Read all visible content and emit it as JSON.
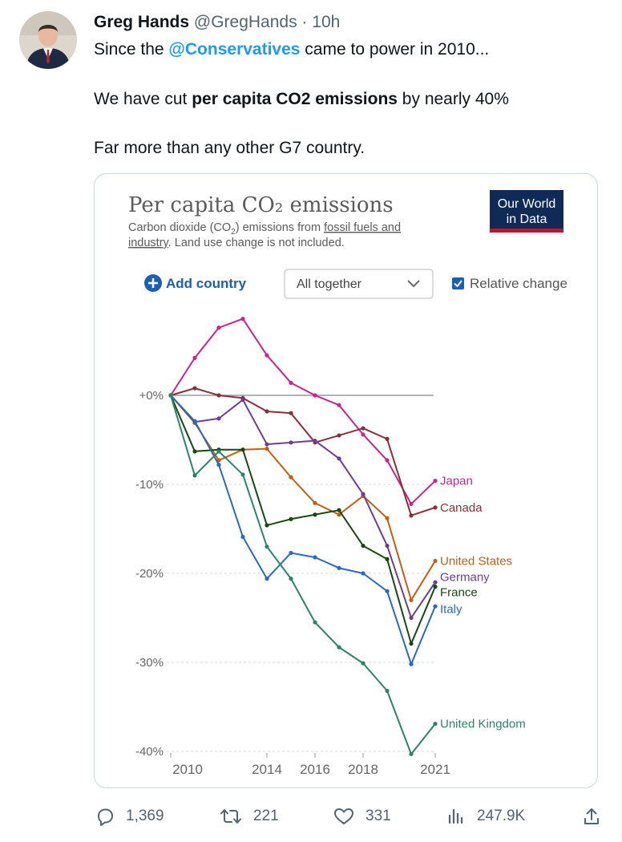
{
  "tweet": {
    "author_name": "Greg Hands",
    "author_handle": "@GregHands",
    "separator": " · ",
    "time": "10h",
    "line1_before": "Since the ",
    "line1_mention": "@Conservatives",
    "line1_after": " came to power in 2010...",
    "line2_before": "We have cut ",
    "line2_bold": "per capita CO2 emissions",
    "line2_after": " by nearly 40%",
    "line3": "Far more than any other G7 country."
  },
  "owid": {
    "title": "Per capita CO₂ emissions",
    "subtitle_line1_a": "Carbon dioxide (CO",
    "subtitle_sub": "2",
    "subtitle_line1_b": ") emissions from ",
    "subtitle_link1": "fossil fuels and",
    "subtitle_link2": "industry",
    "subtitle_line2_b": ". Land use change is not included.",
    "logo_line1": "Our World",
    "logo_line2": "in Data",
    "add_country": "Add country",
    "dropdown_value": "All together",
    "relative_change_label": "Relative change",
    "relative_change_checked": true,
    "logo_bg": "#0f2a56",
    "logo_stripe": "#c8102e"
  },
  "chart_data": {
    "type": "line",
    "x": [
      2010,
      2011,
      2012,
      2013,
      2014,
      2015,
      2016,
      2017,
      2018,
      2019,
      2020,
      2021
    ],
    "xticks": [
      2010,
      2014,
      2016,
      2018,
      2021
    ],
    "xtick_labels": [
      "2010",
      "2014",
      "2016",
      "2018",
      "2021"
    ],
    "ylim": [
      -40,
      10
    ],
    "yticks": [
      0,
      -10,
      -20,
      -30,
      -40
    ],
    "ytick_labels": [
      "+0%",
      "-10%",
      "-20%",
      "-30%",
      "-40%"
    ],
    "xlim": [
      2010,
      2021
    ],
    "series": [
      {
        "name": "Japan",
        "color": "#c8248b",
        "values": [
          0,
          4.2,
          7.6,
          8.6,
          4.5,
          1.4,
          0,
          -1.1,
          -4.4,
          -7.3,
          -12.2,
          -9.6
        ]
      },
      {
        "name": "Canada",
        "color": "#883039",
        "values": [
          0,
          0.8,
          0,
          -0.3,
          -1.8,
          -2.0,
          -5.3,
          -4.5,
          -3.7,
          -4.9,
          -13.5,
          -12.6
        ]
      },
      {
        "name": "United States",
        "color": "#c15f15",
        "values": [
          0,
          -3.1,
          -7.3,
          -6.1,
          -6.0,
          -9.2,
          -12.1,
          -13.4,
          -11.3,
          -13.8,
          -23.0,
          -18.6
        ]
      },
      {
        "name": "Germany",
        "color": "#6d3e91",
        "values": [
          0,
          -3.0,
          -2.6,
          -0.5,
          -5.5,
          -5.3,
          -5.1,
          -7.1,
          -11.1,
          -16.9,
          -25.0,
          -21.0
        ]
      },
      {
        "name": "France",
        "color": "#18470f",
        "values": [
          0,
          -6.3,
          -6.1,
          -6.1,
          -14.6,
          -13.9,
          -13.4,
          -12.9,
          -16.9,
          -18.4,
          -27.9,
          -21.5
        ]
      },
      {
        "name": "Italy",
        "color": "#286bbb",
        "values": [
          0,
          -2.9,
          -7.8,
          -15.9,
          -20.6,
          -17.7,
          -18.2,
          -19.4,
          -20.0,
          -22.0,
          -30.2,
          -23.7
        ]
      },
      {
        "name": "United Kingdom",
        "color": "#2c8465",
        "values": [
          0,
          -9.0,
          -6.3,
          -8.9,
          -17.0,
          -20.6,
          -25.5,
          -28.3,
          -30.1,
          -33.2,
          -40.3,
          -36.9
        ]
      }
    ]
  },
  "actions": {
    "replies": "1,369",
    "retweets": "221",
    "likes": "331",
    "views": "247.9K"
  }
}
